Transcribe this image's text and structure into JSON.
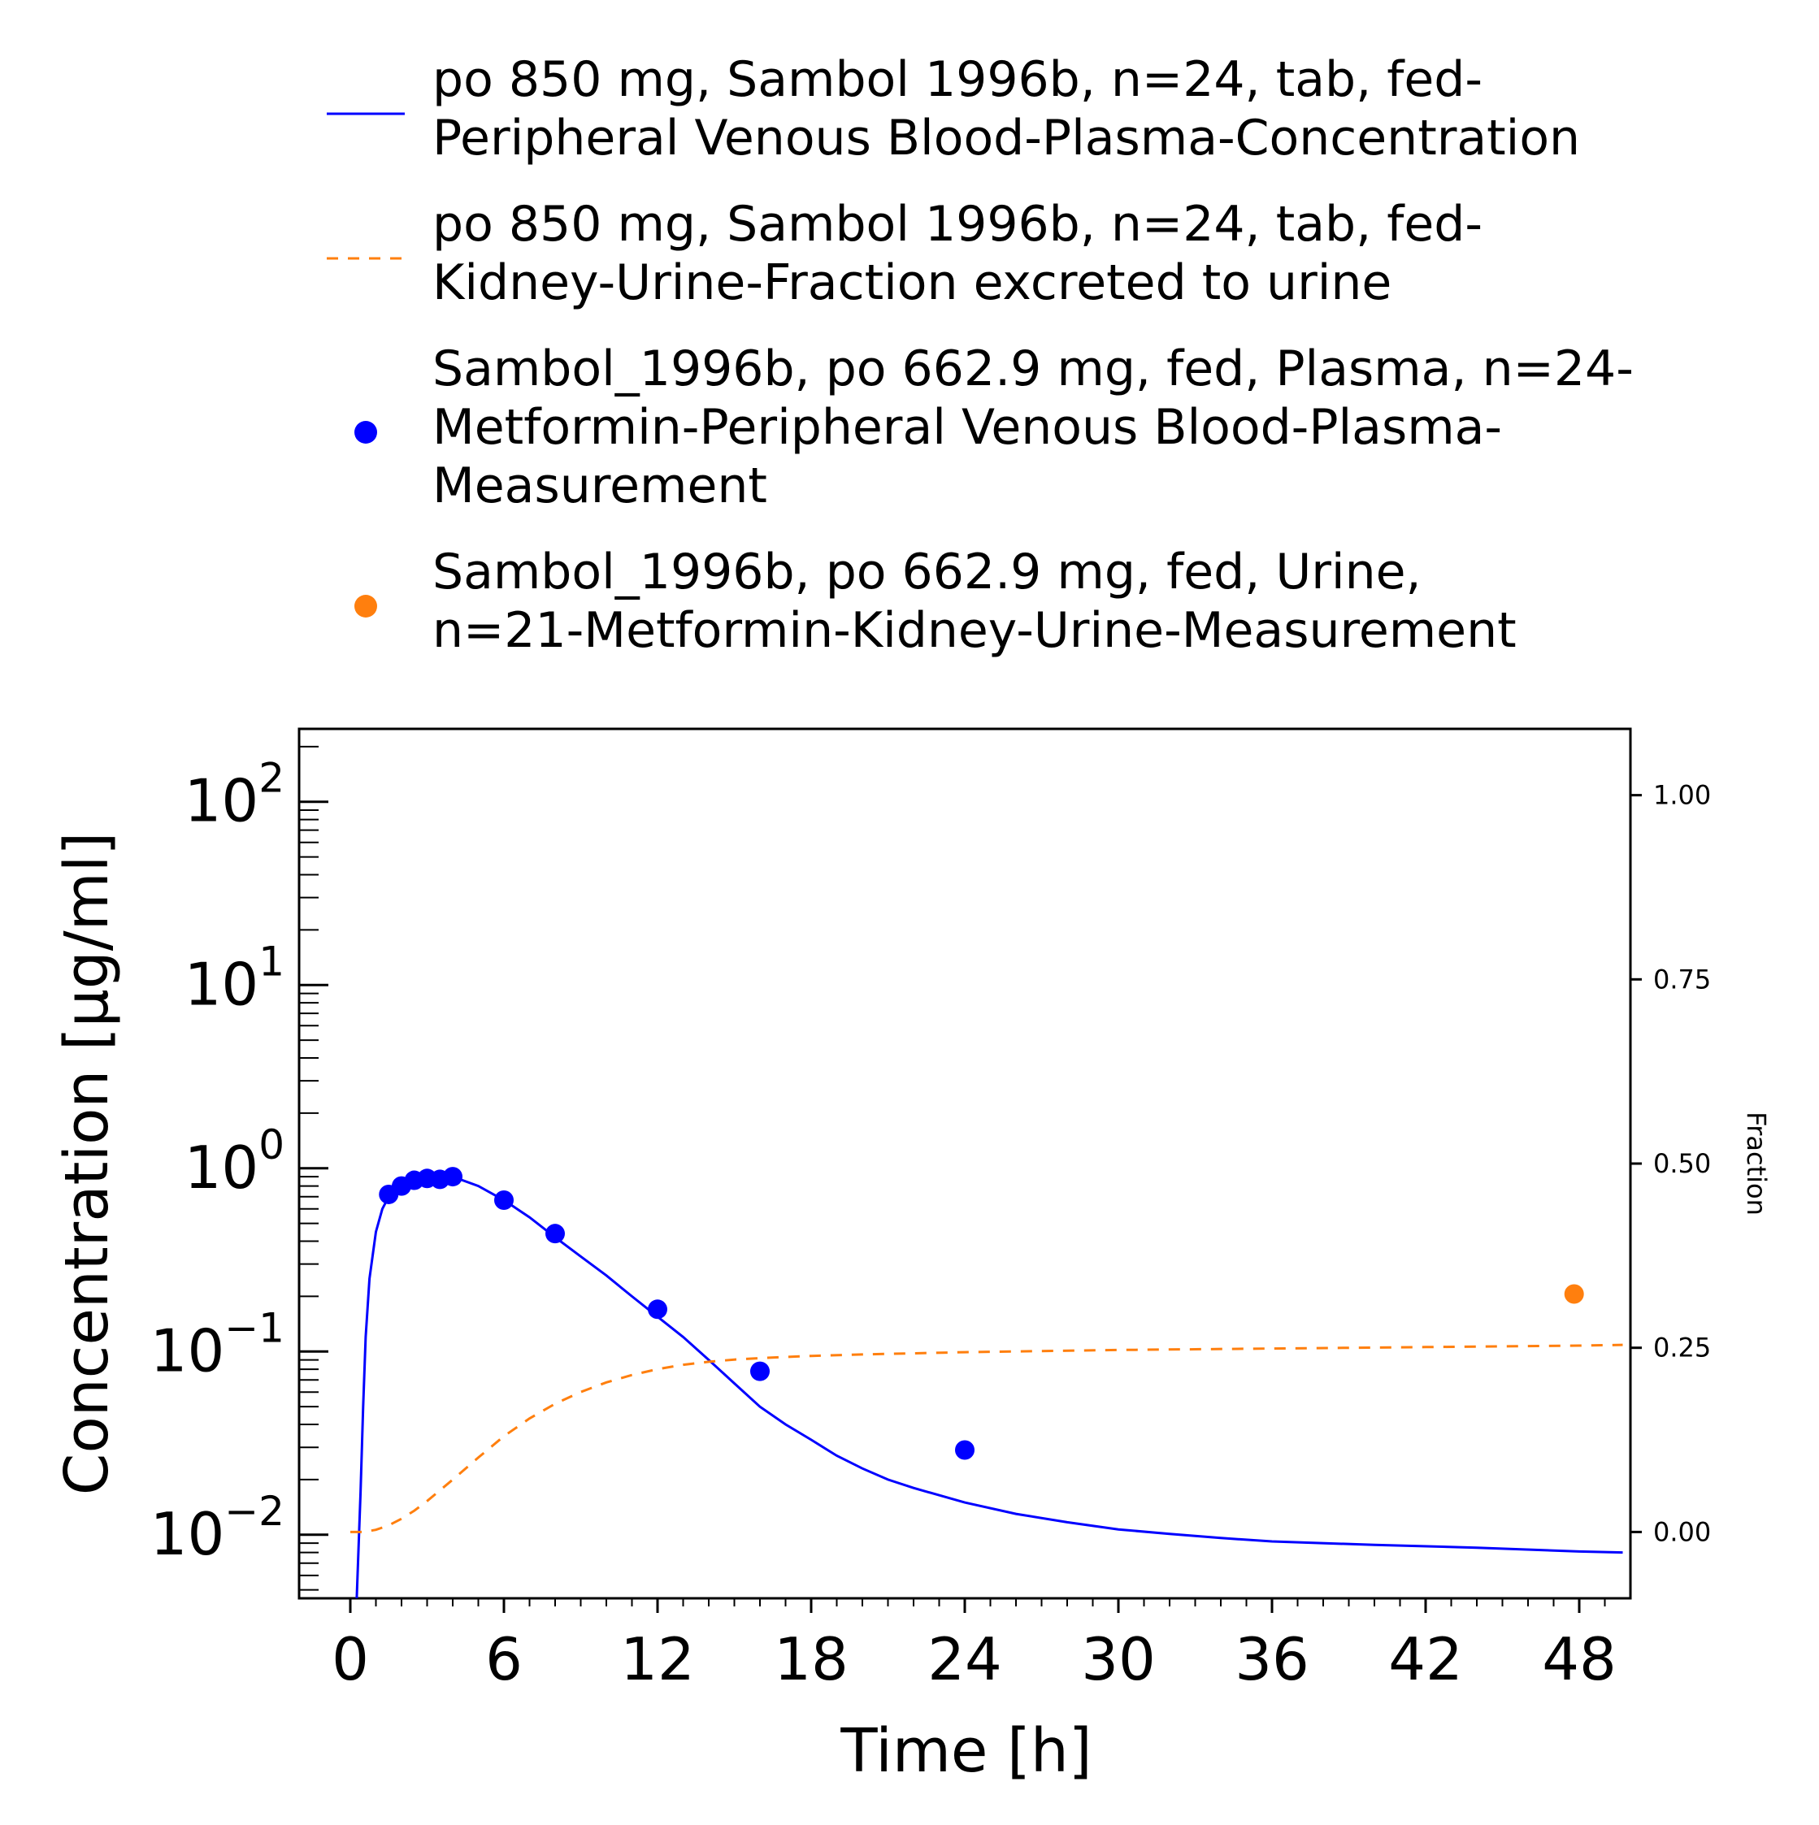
{
  "chart_data": {
    "type": "line",
    "xlabel": "Time [h]",
    "ylabel": "Concentration [µg/ml]",
    "y2label": "Fraction",
    "xlim": [
      -2,
      50
    ],
    "ylim": [
      0.0045,
      250
    ],
    "yscale": "log",
    "y2lim": [
      -0.09,
      1.09
    ],
    "xticks": [
      0,
      6,
      12,
      18,
      24,
      30,
      36,
      42,
      48
    ],
    "xtick_labels": [
      "0",
      "6",
      "12",
      "18",
      "24",
      "30",
      "36",
      "42",
      "48"
    ],
    "yticks": [
      0.01,
      0.1,
      1,
      10,
      100
    ],
    "ytick_base": "10",
    "ytick_exponents": [
      "−2",
      "−1",
      "0",
      "1",
      "2"
    ],
    "y2ticks": [
      0.0,
      0.25,
      0.5,
      0.75,
      1.0
    ],
    "y2tick_labels": [
      "0.00",
      "0.25",
      "0.50",
      "0.75",
      "1.00"
    ],
    "grid": false,
    "legend_position": "top",
    "series": [
      {
        "name_lines": [
          "po 850 mg, Sambol 1996b, n=24, tab, fed-",
          "Peripheral Venous Blood-Plasma-Concentration"
        ],
        "kind": "line",
        "axis": "left",
        "color": "#0000ff",
        "dash": "solid",
        "x": [
          0.25,
          0.4,
          0.5,
          0.6,
          0.75,
          1.0,
          1.25,
          1.5,
          2.0,
          2.5,
          3.0,
          3.5,
          4.0,
          5.0,
          6.0,
          7.0,
          8.0,
          9.0,
          10.0,
          11.0,
          12.0,
          13.0,
          14.0,
          15.0,
          16.0,
          17.0,
          18.0,
          19.0,
          20.0,
          21.0,
          22.0,
          24.0,
          26.0,
          28.0,
          30.0,
          32.0,
          34.0,
          36.0,
          40.0,
          44.0,
          48.0,
          49.7
        ],
        "y": [
          0.0045,
          0.017,
          0.05,
          0.12,
          0.25,
          0.45,
          0.6,
          0.7,
          0.8,
          0.86,
          0.89,
          0.9,
          0.9,
          0.8,
          0.67,
          0.54,
          0.42,
          0.33,
          0.26,
          0.2,
          0.155,
          0.12,
          0.09,
          0.067,
          0.05,
          0.04,
          0.033,
          0.027,
          0.023,
          0.02,
          0.018,
          0.015,
          0.013,
          0.0117,
          0.0107,
          0.0101,
          0.0096,
          0.0092,
          0.0088,
          0.0085,
          0.0081,
          0.008
        ]
      },
      {
        "name_lines": [
          "po 850 mg, Sambol 1996b, n=24, tab, fed-",
          "Kidney-Urine-Fraction excreted to urine"
        ],
        "kind": "line",
        "axis": "right",
        "color": "#ff7f0e",
        "dash": "dashed",
        "x": [
          0,
          0.5,
          1,
          1.5,
          2,
          2.5,
          3,
          4,
          5,
          6,
          7,
          8,
          9,
          10,
          11,
          12,
          13,
          14,
          15,
          16,
          18,
          20,
          24,
          30,
          36,
          42,
          48,
          49.7
        ],
        "y": [
          0.0,
          0.0,
          0.003,
          0.009,
          0.018,
          0.029,
          0.042,
          0.071,
          0.101,
          0.13,
          0.154,
          0.174,
          0.19,
          0.203,
          0.213,
          0.221,
          0.227,
          0.231,
          0.234,
          0.236,
          0.239,
          0.241,
          0.244,
          0.247,
          0.249,
          0.251,
          0.253,
          0.254
        ]
      },
      {
        "name_lines": [
          "Sambol_1996b, po 662.9 mg, fed, Plasma, n=24-",
          "Metformin-Peripheral Venous Blood-Plasma-",
          "Measurement"
        ],
        "kind": "scatter",
        "axis": "left",
        "color": "#0000ff",
        "x": [
          1.5,
          2.0,
          2.5,
          3.0,
          3.5,
          4.0,
          6.0,
          8.0,
          12.0,
          16.0,
          24.0
        ],
        "y": [
          0.72,
          0.8,
          0.86,
          0.88,
          0.87,
          0.9,
          0.67,
          0.44,
          0.17,
          0.078,
          0.029
        ]
      },
      {
        "name_lines": [
          "Sambol_1996b, po 662.9 mg, fed, Urine,",
          "n=21-Metformin-Kidney-Urine-Measurement"
        ],
        "kind": "scatter",
        "axis": "right",
        "color": "#ff7f0e",
        "x": [
          47.8
        ],
        "y": [
          0.323
        ]
      }
    ]
  }
}
